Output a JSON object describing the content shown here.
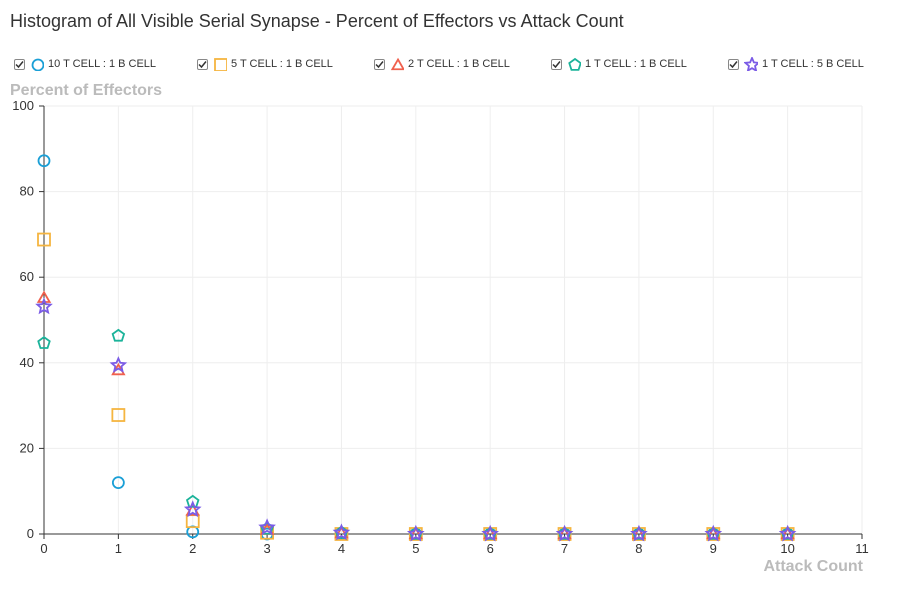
{
  "chart_data": {
    "type": "scatter",
    "title": "Histogram of All Visible Serial Synapse - Percent of Effectors vs Attack Count",
    "xlabel": "Attack Count",
    "ylabel": "Percent of Effectors",
    "xlim": [
      0,
      11
    ],
    "ylim": [
      0,
      100
    ],
    "xticks": [
      0,
      1,
      2,
      3,
      4,
      5,
      6,
      7,
      8,
      9,
      10,
      11
    ],
    "yticks": [
      0,
      20,
      40,
      60,
      80,
      100
    ],
    "grid": true,
    "legend_position": "top",
    "x": [
      0,
      1,
      2,
      3,
      4,
      5,
      6,
      7,
      8,
      9,
      10
    ],
    "series": [
      {
        "name": "10 T CELL : 1 B CELL",
        "marker": "circle",
        "color": "#1a9fd6",
        "values": [
          87.2,
          12.0,
          0.5,
          0,
          0,
          0,
          0,
          0,
          0,
          0,
          0
        ]
      },
      {
        "name": "5 T CELL : 1 B CELL",
        "marker": "square",
        "color": "#f5b540",
        "values": [
          68.8,
          27.8,
          3.0,
          0.3,
          0,
          0,
          0,
          0,
          0,
          0,
          0
        ]
      },
      {
        "name": "2 T CELL : 1 B CELL",
        "marker": "triangle",
        "color": "#f0604d",
        "values": [
          55.2,
          38.3,
          5.5,
          1.0,
          0.2,
          0,
          0,
          0,
          0,
          0,
          0
        ]
      },
      {
        "name": "1 T CELL : 1 B CELL",
        "marker": "pentagon",
        "color": "#1bb39a",
        "values": [
          44.6,
          46.3,
          7.5,
          1.2,
          0.3,
          0,
          0,
          0,
          0,
          0,
          0
        ]
      },
      {
        "name": "1 T CELL : 5 B CELL",
        "marker": "star",
        "color": "#7b5ce6",
        "values": [
          53.1,
          39.4,
          5.7,
          1.5,
          0.3,
          0,
          0,
          0,
          0,
          0,
          0
        ]
      }
    ]
  }
}
